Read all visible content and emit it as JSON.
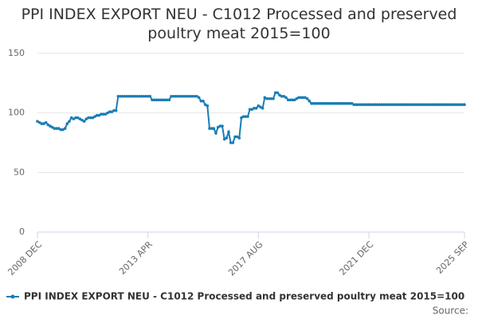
{
  "chart_data": {
    "type": "line",
    "title": "PPI INDEX EXPORT NEU - C1012 Processed and preserved poultry meat 2015=100",
    "source": "Source:",
    "categories": [
      "2008 DEC",
      null,
      null,
      null,
      null,
      null,
      null,
      null,
      null,
      null,
      null,
      null,
      null,
      null,
      null,
      null,
      null,
      null,
      null,
      null,
      null,
      null,
      null,
      null,
      null,
      null,
      null,
      null,
      null,
      null,
      null,
      null,
      null,
      null,
      null,
      null,
      null,
      null,
      null,
      null,
      null,
      null,
      null,
      null,
      null,
      null,
      null,
      null,
      null,
      null,
      null,
      null,
      "2013 APR",
      null,
      null,
      null,
      null,
      null,
      null,
      null,
      null,
      null,
      null,
      null,
      null,
      null,
      null,
      null,
      null,
      null,
      null,
      null,
      null,
      null,
      null,
      null,
      null,
      null,
      null,
      null,
      null,
      null,
      null,
      null,
      null,
      null,
      null,
      null,
      null,
      null,
      null,
      null,
      null,
      null,
      null,
      null,
      null,
      null,
      null,
      null,
      null,
      null,
      null,
      null,
      "2017 AUG",
      null,
      null,
      null,
      null,
      null,
      null,
      null,
      null,
      null,
      null,
      null,
      null,
      null,
      null,
      null,
      null,
      null,
      null,
      null,
      null,
      null,
      null,
      null,
      null,
      null,
      null,
      null,
      null,
      null,
      null,
      null,
      null,
      null,
      null,
      null,
      null,
      null,
      null,
      null,
      null,
      null,
      null,
      null,
      null,
      null,
      null,
      null,
      null,
      null,
      null,
      null,
      "2021 DEC",
      null,
      null,
      null,
      null,
      null,
      null,
      null,
      null,
      null,
      null,
      null,
      null,
      null,
      null,
      null,
      null,
      null,
      null,
      null,
      null,
      null,
      null,
      null,
      null,
      null,
      null,
      null,
      null,
      null,
      null,
      null,
      null,
      null,
      null,
      null,
      null,
      null,
      null,
      null,
      null,
      null,
      null,
      null,
      null,
      "2025 SEP"
    ],
    "series": [
      {
        "name": "PPI INDEX EXPORT NEU - C1012 Processed and preserved poultry meat 2015=100",
        "color": "#1a7db5",
        "values": [
          93,
          92,
          91,
          91,
          92,
          90,
          89,
          88,
          87,
          87,
          87,
          86,
          86,
          87,
          91,
          93,
          96,
          95,
          96,
          96,
          95,
          94,
          93,
          95,
          96,
          96,
          96,
          97,
          98,
          98,
          99,
          99,
          99,
          100,
          101,
          101,
          102,
          102,
          114,
          114,
          114,
          114,
          114,
          114,
          114,
          114,
          114,
          114,
          114,
          114,
          114,
          114,
          114,
          114,
          111,
          111,
          111,
          111,
          111,
          111,
          111,
          111,
          111,
          114,
          114,
          114,
          114,
          114,
          114,
          114,
          114,
          114,
          114,
          114,
          114,
          114,
          113,
          110,
          110,
          107,
          106,
          87,
          87,
          87,
          83,
          88,
          89,
          89,
          78,
          79,
          84,
          75,
          75,
          80,
          80,
          79,
          96,
          97,
          97,
          97,
          103,
          103,
          104,
          104,
          106,
          105,
          104,
          113,
          112,
          112,
          112,
          112,
          117,
          117,
          115,
          114,
          114,
          113,
          111,
          111,
          111,
          111,
          112,
          113,
          113,
          113,
          113,
          112,
          110,
          108,
          108,
          108,
          108,
          108,
          108,
          108,
          108,
          108,
          108,
          108,
          108,
          108,
          108,
          108,
          108,
          108,
          108,
          108,
          108,
          107,
          107,
          107,
          107,
          107,
          107,
          107,
          107,
          107,
          107,
          107,
          107,
          107,
          107,
          107,
          107,
          107,
          107,
          107,
          107,
          107,
          107,
          107,
          107,
          107,
          107,
          107,
          107,
          107,
          107,
          107,
          107,
          107,
          107,
          107,
          107,
          107,
          107,
          107,
          107,
          107,
          107,
          107,
          107,
          107,
          107,
          107,
          107,
          107,
          107,
          107,
          107,
          107
        ]
      }
    ],
    "ylim": [
      0,
      150
    ],
    "yticks": [
      0,
      50,
      100,
      150
    ],
    "grid": true
  }
}
